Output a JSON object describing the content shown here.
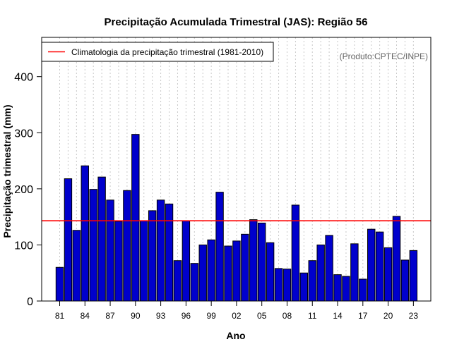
{
  "chart_data": {
    "type": "bar",
    "title": "Precipitação Acumulada Trimestral (JAS): Região 56",
    "xlabel": "Ano",
    "ylabel": "Precipitação trimestral (mm)",
    "credit": "(Produto:CPTEC/INPE)",
    "legend": {
      "label": "Climatologia da precipitação trimestral (1981-2010)",
      "position": "top-left"
    },
    "ylim": [
      0,
      470
    ],
    "yticks": [
      0,
      100,
      200,
      300,
      400
    ],
    "grid": "vertical dotted",
    "years": [
      1981,
      1982,
      1983,
      1984,
      1985,
      1986,
      1987,
      1988,
      1989,
      1990,
      1991,
      1992,
      1993,
      1994,
      1995,
      1996,
      1997,
      1998,
      1999,
      2000,
      2001,
      2002,
      2003,
      2004,
      2005,
      2006,
      2007,
      2008,
      2009,
      2010,
      2011,
      2012,
      2013,
      2014,
      2015,
      2016,
      2017,
      2018,
      2019,
      2020,
      2021,
      2022,
      2023
    ],
    "values": [
      60,
      218,
      126,
      241,
      199,
      221,
      180,
      142,
      197,
      297,
      143,
      161,
      180,
      173,
      72,
      143,
      67,
      100,
      109,
      194,
      98,
      107,
      119,
      145,
      139,
      104,
      58,
      57,
      171,
      50,
      72,
      100,
      117,
      47,
      44,
      102,
      39,
      128,
      123,
      95,
      151,
      73,
      90
    ],
    "tick_labels": [
      "81",
      "84",
      "87",
      "90",
      "93",
      "96",
      "99",
      "02",
      "05",
      "08",
      "11",
      "14",
      "17",
      "20",
      "23"
    ],
    "climatology": 143,
    "colors": {
      "bar_fill": "#0000cc",
      "bar_stroke": "#000000",
      "climatology_line": "#ff0000",
      "grid": "#c8c8c8",
      "credit_text": "#666666"
    }
  }
}
